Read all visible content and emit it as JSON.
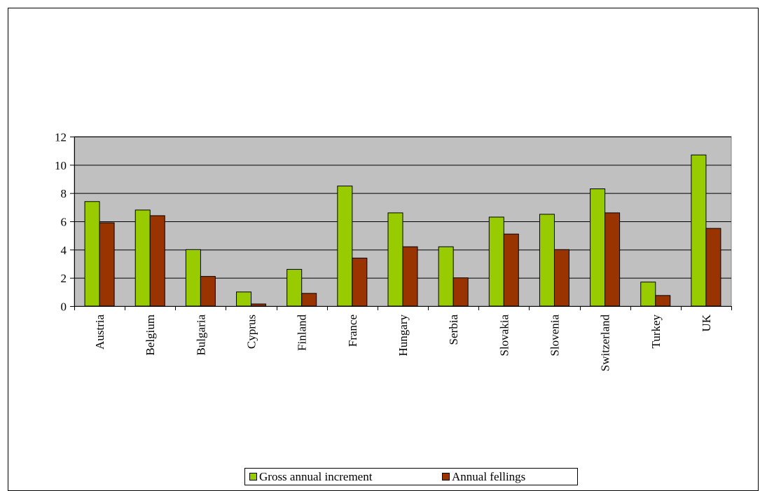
{
  "chart_data": {
    "type": "bar",
    "categories": [
      "Austria",
      "Belgium",
      "Bulgaria",
      "Cyprus",
      "Finland",
      "France",
      "Hungary",
      "Serbia",
      "Slovakia",
      "Slovenia",
      "Switzerland",
      "Turkey",
      "UK"
    ],
    "series": [
      {
        "name": "Gross annual increment",
        "color": "#99cc00",
        "values": [
          7.4,
          6.8,
          4.0,
          1.0,
          2.6,
          8.5,
          6.6,
          4.2,
          6.3,
          6.5,
          8.3,
          1.7,
          10.7
        ]
      },
      {
        "name": "Annual fellings",
        "color": "#993300",
        "values": [
          5.9,
          6.4,
          2.1,
          0.15,
          0.9,
          3.4,
          4.2,
          2.0,
          5.1,
          4.0,
          6.6,
          0.75,
          5.5
        ]
      }
    ],
    "ylim": [
      0,
      12
    ],
    "yticks": [
      0,
      2,
      4,
      6,
      8,
      10,
      12
    ],
    "grid": true,
    "plot_background": "#c0c0c0",
    "legend_position": "bottom",
    "title": "",
    "xlabel": "",
    "ylabel": ""
  }
}
